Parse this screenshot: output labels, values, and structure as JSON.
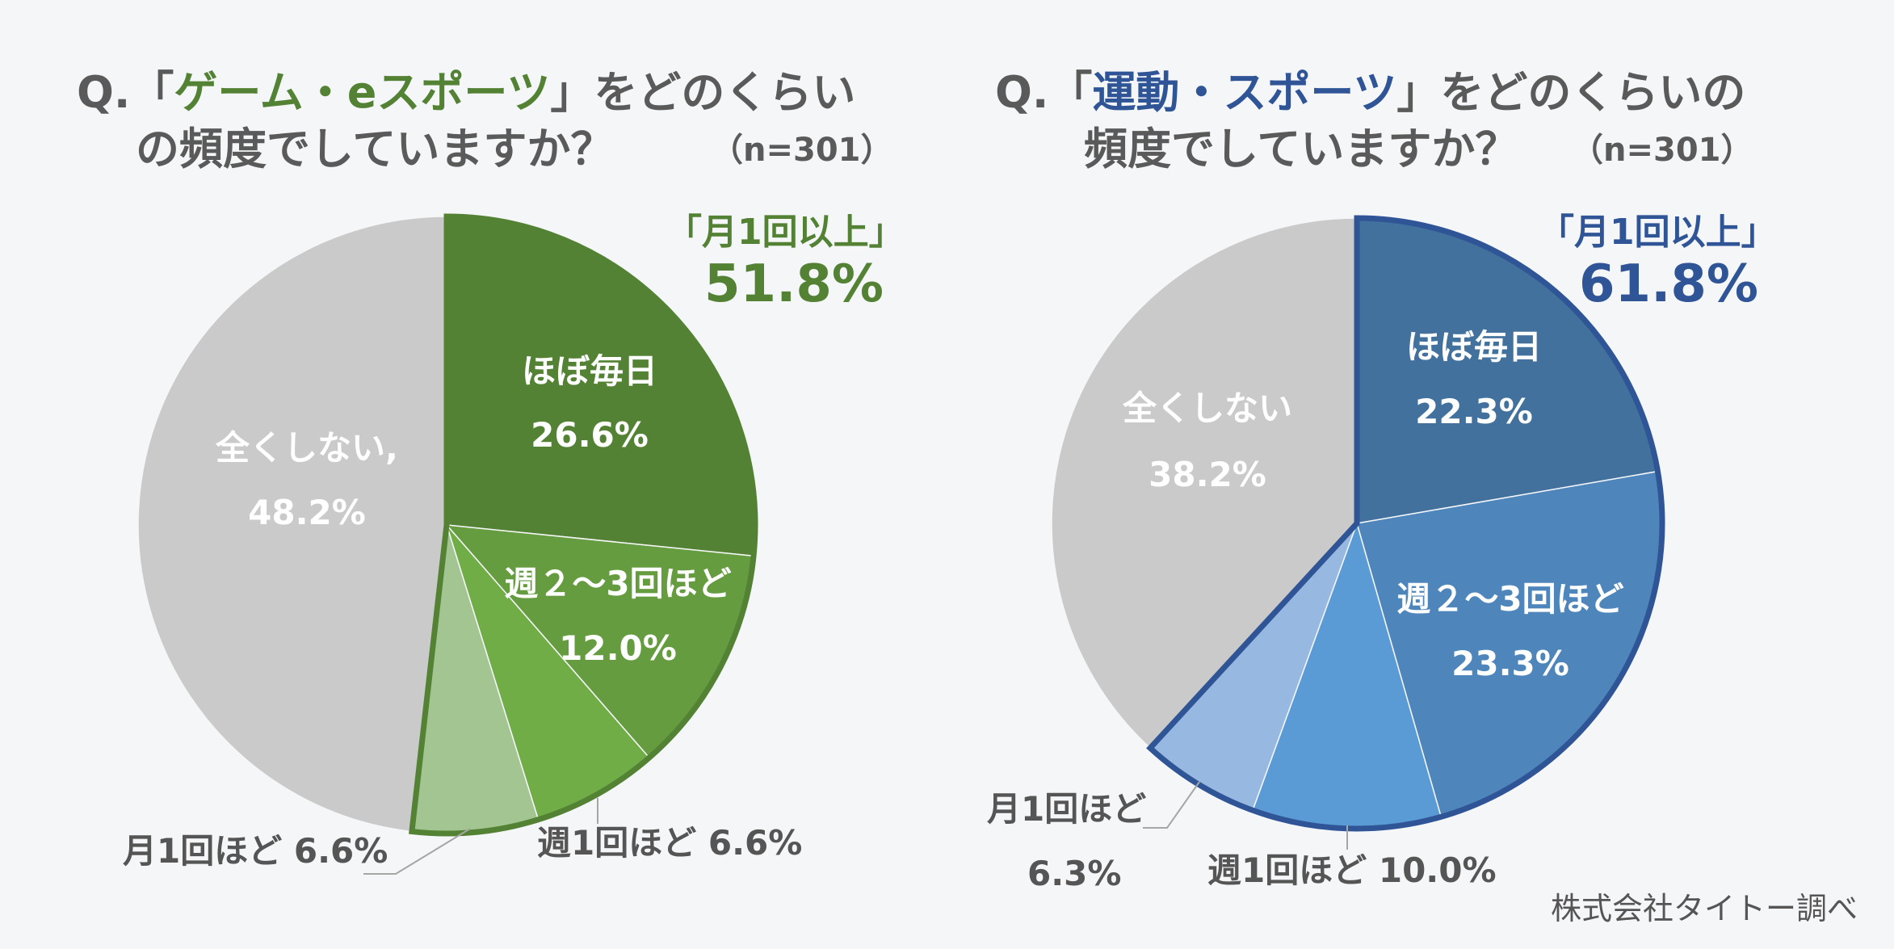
{
  "chart_data": [
    {
      "type": "pie",
      "id": "game",
      "title_parts": [
        "Q.「",
        "ゲーム・eスポーツ",
        "」をどのくらい"
      ],
      "title_line2": "の頻度でしていますか？",
      "n_label": "（n=301）",
      "highlight_color": "#548235",
      "summary": {
        "label": "「月1回以上」",
        "value_label": "51.8%",
        "value": 51.8
      },
      "slices": [
        {
          "name": "ほぼ毎日",
          "value": 26.6,
          "value_label": "26.6%",
          "color": "#548235"
        },
        {
          "name": "週２～3回ほど",
          "value": 12.0,
          "value_label": "12.0%",
          "color": "#669c40"
        },
        {
          "name": "週1回ほど",
          "value": 6.6,
          "value_label": "週1回ほど 6.6%",
          "color": "#70ad47"
        },
        {
          "name": "月1回ほど",
          "value": 6.6,
          "value_label": "月1回ほど 6.6%",
          "color": "#a2c592"
        },
        {
          "name": "全くしない,",
          "value": 48.2,
          "value_label": "48.2%",
          "color": "#cacaca"
        }
      ]
    },
    {
      "type": "pie",
      "id": "sport",
      "title_parts": [
        "Q.「",
        "運動・スポーツ",
        "」をどのくらいの"
      ],
      "title_line2": "頻度でしていますか？",
      "n_label": "（n=301）",
      "highlight_color": "#2f5597",
      "summary": {
        "label": "「月1回以上」",
        "value_label": "61.8%",
        "value": 61.8
      },
      "slices": [
        {
          "name": "ほぼ毎日",
          "value": 22.3,
          "value_label": "22.3%",
          "color": "#41719c"
        },
        {
          "name": "週２～3回ほど",
          "value": 23.3,
          "value_label": "23.3%",
          "color": "#4e86bc"
        },
        {
          "name": "週1回ほど",
          "value": 10.0,
          "value_label": "週1回ほど 10.0%",
          "color": "#5b9bd5"
        },
        {
          "name": "月1回ほど",
          "value": 6.3,
          "value_label": "6.3%",
          "color": "#97b8e0"
        },
        {
          "name": "全くしない",
          "value": 38.2,
          "value_label": "38.2%",
          "color": "#cacaca"
        }
      ]
    }
  ],
  "credit": "株式会社タイトー調べ"
}
